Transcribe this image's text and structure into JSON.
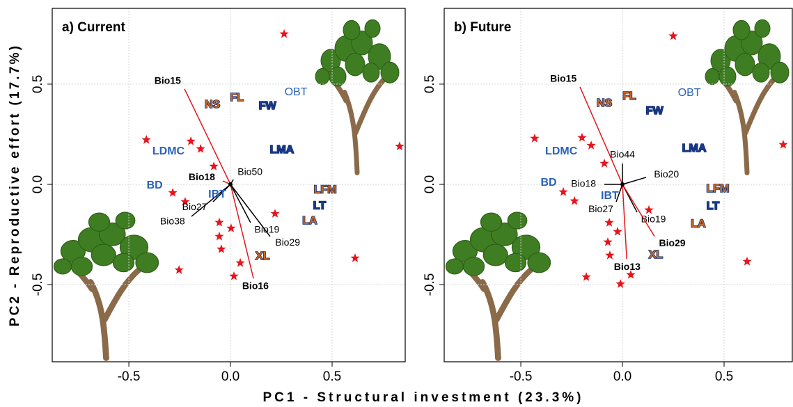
{
  "chart_data": [
    {
      "type": "biplot",
      "title": "a) Current",
      "xlabel": "PC1 - Structural investment (23.3%)",
      "ylabel": "PC2 - Reproductive effort (17.7%)",
      "xlim": [
        -0.877,
        0.863
      ],
      "ylim": [
        -0.885,
        0.878
      ],
      "xticks": [
        -0.5,
        {
          "value": 0,
          "label": "0.0"
        },
        0.5
      ],
      "yticks": [
        -0.5,
        {
          "value": 0,
          "label": "0.0"
        },
        0.5
      ],
      "grid": true,
      "point_color": "#e8141c",
      "x": [
        0.264,
        0.832,
        -0.414,
        -0.195,
        -0.147,
        -0.082,
        -0.284,
        -0.223,
        -0.055,
        0.003,
        -0.055,
        -0.045,
        0.219,
        0.048,
        -0.253,
        0.017,
        0.613
      ],
      "y": [
        0.75,
        0.19,
        0.222,
        0.215,
        0.177,
        0.09,
        -0.042,
        -0.087,
        -0.19,
        -0.219,
        -0.26,
        -0.323,
        -0.146,
        -0.392,
        -0.427,
        -0.458,
        -0.368
      ],
      "loadings": [
        {
          "label": "Bio15",
          "x": -0.226,
          "y": 0.476,
          "color": "#e8141c",
          "bold": true
        },
        {
          "label": "Bio16",
          "x": 0.113,
          "y": -0.469,
          "color": "#e8141c",
          "bold": true
        },
        {
          "label": "Bio50",
          "x": 0.014,
          "y": 0.024,
          "color": "#000000",
          "bold": false
        },
        {
          "label": "Bio18",
          "x": -0.038,
          "y": 0.017,
          "color": "#e8141c",
          "bold": true
        },
        {
          "label": "Bio27",
          "x": -0.086,
          "y": -0.087,
          "color": "#000000",
          "bold": false
        },
        {
          "label": "Bio38",
          "x": -0.192,
          "y": -0.16,
          "color": "#000000",
          "bold": false
        },
        {
          "label": "Bio19",
          "x": 0.099,
          "y": -0.191,
          "color": "#000000",
          "bold": false
        },
        {
          "label": "Bio29",
          "x": 0.195,
          "y": -0.26,
          "color": "#000000",
          "bold": false
        }
      ],
      "traits": [
        {
          "label": "NS",
          "x": -0.089,
          "y": 0.396,
          "color": "#c8692a",
          "bold": true
        },
        {
          "label": "FL",
          "x": 0.031,
          "y": 0.431,
          "color": "#c8692a",
          "bold": true
        },
        {
          "label": "FW",
          "x": 0.182,
          "y": 0.389,
          "color": "#1a3a8c",
          "bold": true
        },
        {
          "label": "OBT",
          "x": 0.322,
          "y": 0.458,
          "color": "#2a62b8",
          "bold": false
        },
        {
          "label": "LMA",
          "x": 0.253,
          "y": 0.17,
          "color": "#1a3a8c",
          "bold": true
        },
        {
          "label": "LDMC",
          "x": -0.305,
          "y": 0.163,
          "color": "#2a62b8",
          "bold": true
        },
        {
          "label": "BD",
          "x": -0.373,
          "y": -0.007,
          "color": "#2a62b8",
          "bold": true
        },
        {
          "label": "IBT",
          "x": -0.065,
          "y": -0.052,
          "color": "#2a62b8",
          "bold": true
        },
        {
          "label": "LFM",
          "x": 0.466,
          "y": -0.028,
          "color": "#c8692a",
          "bold": true
        },
        {
          "label": "LT",
          "x": 0.438,
          "y": -0.108,
          "color": "#1a3a8c",
          "bold": true
        },
        {
          "label": "LA",
          "x": 0.39,
          "y": -0.184,
          "color": "#c8692a",
          "bold": true
        },
        {
          "label": "XL",
          "x": 0.158,
          "y": -0.361,
          "color": "#c8692a",
          "bold": true
        }
      ]
    },
    {
      "type": "biplot",
      "title": "b) Future",
      "xlim": [
        -0.877,
        0.839
      ],
      "ylim": [
        -0.885,
        0.878
      ],
      "xticks": [
        -0.5,
        {
          "value": 0,
          "label": "0.0"
        },
        0.5
      ],
      "yticks": [
        -0.5,
        {
          "value": 0,
          "label": "0.0"
        },
        0.5
      ],
      "grid": true,
      "point_color": "#e8141c",
      "x": [
        0.25,
        0.791,
        -0.432,
        -0.199,
        -0.154,
        -0.089,
        -0.291,
        -0.236,
        -0.065,
        -0.024,
        -0.072,
        -0.062,
        0.13,
        0.041,
        -0.178,
        -0.01,
        0.613
      ],
      "y": [
        0.74,
        0.198,
        0.229,
        0.233,
        0.194,
        0.104,
        -0.038,
        -0.083,
        -0.191,
        -0.236,
        -0.288,
        -0.354,
        -0.128,
        -0.451,
        -0.462,
        -0.497,
        -0.385
      ],
      "loadings": [
        {
          "label": "Bio15",
          "x": -0.209,
          "y": 0.486,
          "color": "#e8141c",
          "bold": true
        },
        {
          "label": "Bio44",
          "x": 0,
          "y": 0.104,
          "color": "#000000",
          "bold": false
        },
        {
          "label": "Bio20",
          "x": 0.116,
          "y": 0.035,
          "color": "#000000",
          "bold": false
        },
        {
          "label": "Bio18",
          "x": -0.089,
          "y": 0,
          "color": "#000000",
          "bold": false
        },
        {
          "label": "Bio27",
          "x": -0.031,
          "y": -0.087,
          "color": "#000000",
          "bold": false
        },
        {
          "label": "Bio19",
          "x": 0.072,
          "y": -0.139,
          "color": "#000000",
          "bold": false
        },
        {
          "label": "Bio29",
          "x": 0.158,
          "y": -0.26,
          "color": "#e8141c",
          "bold": true
        },
        {
          "label": "Bio13",
          "x": 0.021,
          "y": -0.372,
          "color": "#e8141c",
          "bold": true
        }
      ],
      "traits": [
        {
          "label": "NS",
          "x": -0.089,
          "y": 0.403,
          "color": "#c8692a",
          "bold": true
        },
        {
          "label": "FL",
          "x": 0.034,
          "y": 0.438,
          "color": "#c8692a",
          "bold": true
        },
        {
          "label": "FW",
          "x": 0.158,
          "y": 0.365,
          "color": "#1a3a8c",
          "bold": true
        },
        {
          "label": "OBT",
          "x": 0.329,
          "y": 0.455,
          "color": "#2a62b8",
          "bold": false
        },
        {
          "label": "LMA",
          "x": 0.353,
          "y": 0.177,
          "color": "#1a3a8c",
          "bold": true
        },
        {
          "label": "LDMC",
          "x": -0.301,
          "y": 0.163,
          "color": "#2a62b8",
          "bold": true
        },
        {
          "label": "BD",
          "x": -0.363,
          "y": 0.007,
          "color": "#2a62b8",
          "bold": true
        },
        {
          "label": "IBT",
          "x": -0.062,
          "y": -0.059,
          "color": "#2a62b8",
          "bold": true
        },
        {
          "label": "LFM",
          "x": 0.469,
          "y": -0.024,
          "color": "#c8692a",
          "bold": true
        },
        {
          "label": "LT",
          "x": 0.445,
          "y": -0.111,
          "color": "#1a3a8c",
          "bold": true
        },
        {
          "label": "LA",
          "x": 0.373,
          "y": -0.198,
          "color": "#c8692a",
          "bold": true
        },
        {
          "label": "XL",
          "x": 0.164,
          "y": -0.354,
          "color": "#c8692a",
          "bold": true
        }
      ]
    }
  ]
}
